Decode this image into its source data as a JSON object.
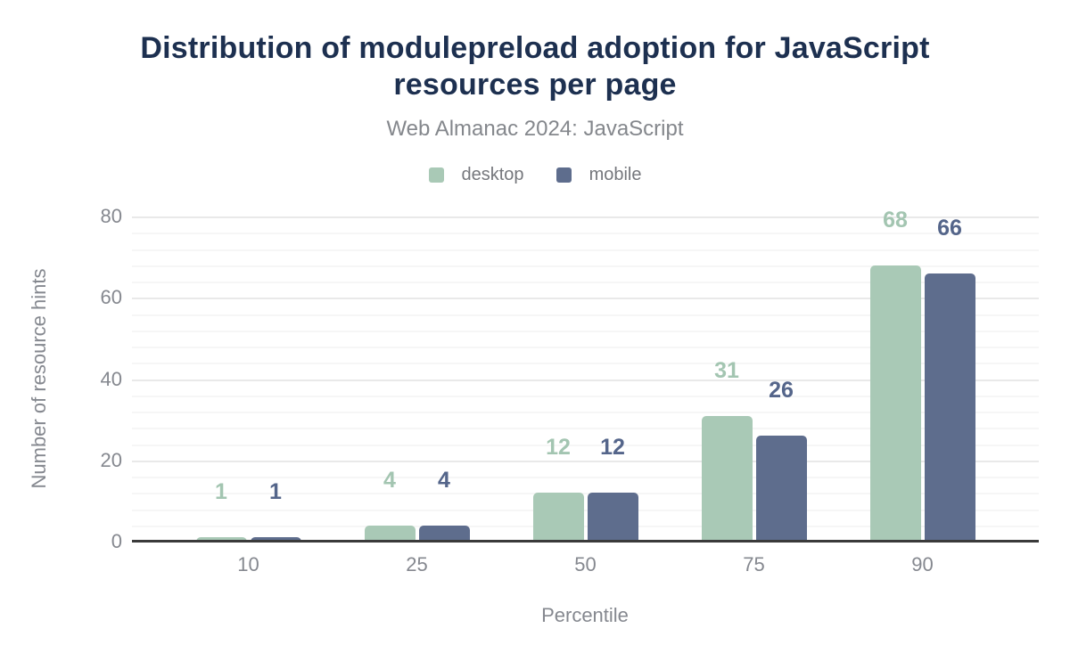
{
  "header": {
    "title": "Distribution of modulepreload adoption for JavaScript resources per page",
    "subtitle": "Web Almanac 2024: JavaScript"
  },
  "legend": {
    "items": [
      {
        "label": "desktop",
        "color": "#a9c9b6"
      },
      {
        "label": "mobile",
        "color": "#5e6d8d"
      }
    ]
  },
  "axes": {
    "xlabel": "Percentile",
    "ylabel": "Number of resource hints"
  },
  "chart_data": {
    "type": "bar",
    "title": "Distribution of modulepreload adoption for JavaScript resources per page",
    "subtitle": "Web Almanac 2024: JavaScript",
    "categories": [
      "10",
      "25",
      "50",
      "75",
      "90"
    ],
    "series": [
      {
        "name": "desktop",
        "color": "#a9c9b6",
        "label_color": "#a3c5b1",
        "values": [
          1,
          4,
          12,
          31,
          68
        ]
      },
      {
        "name": "mobile",
        "color": "#5e6d8d",
        "label_color": "#54658a",
        "values": [
          1,
          4,
          12,
          26,
          66
        ]
      }
    ],
    "xlabel": "Percentile",
    "ylabel": "Number of resource hints",
    "ylim": [
      0,
      80
    ],
    "y_ticks": [
      0,
      20,
      40,
      60,
      80
    ],
    "minor_grid_step": 4,
    "grid": true,
    "legend_position": "top",
    "bar_value_labels": true
  },
  "colors": {
    "title": "#1d3050",
    "subtitle": "#84878c",
    "axis_text": "#85888f",
    "grid_major": "#e9e9e9",
    "grid_minor": "#f6f6f6",
    "axis_line": "#3a3a3a"
  }
}
